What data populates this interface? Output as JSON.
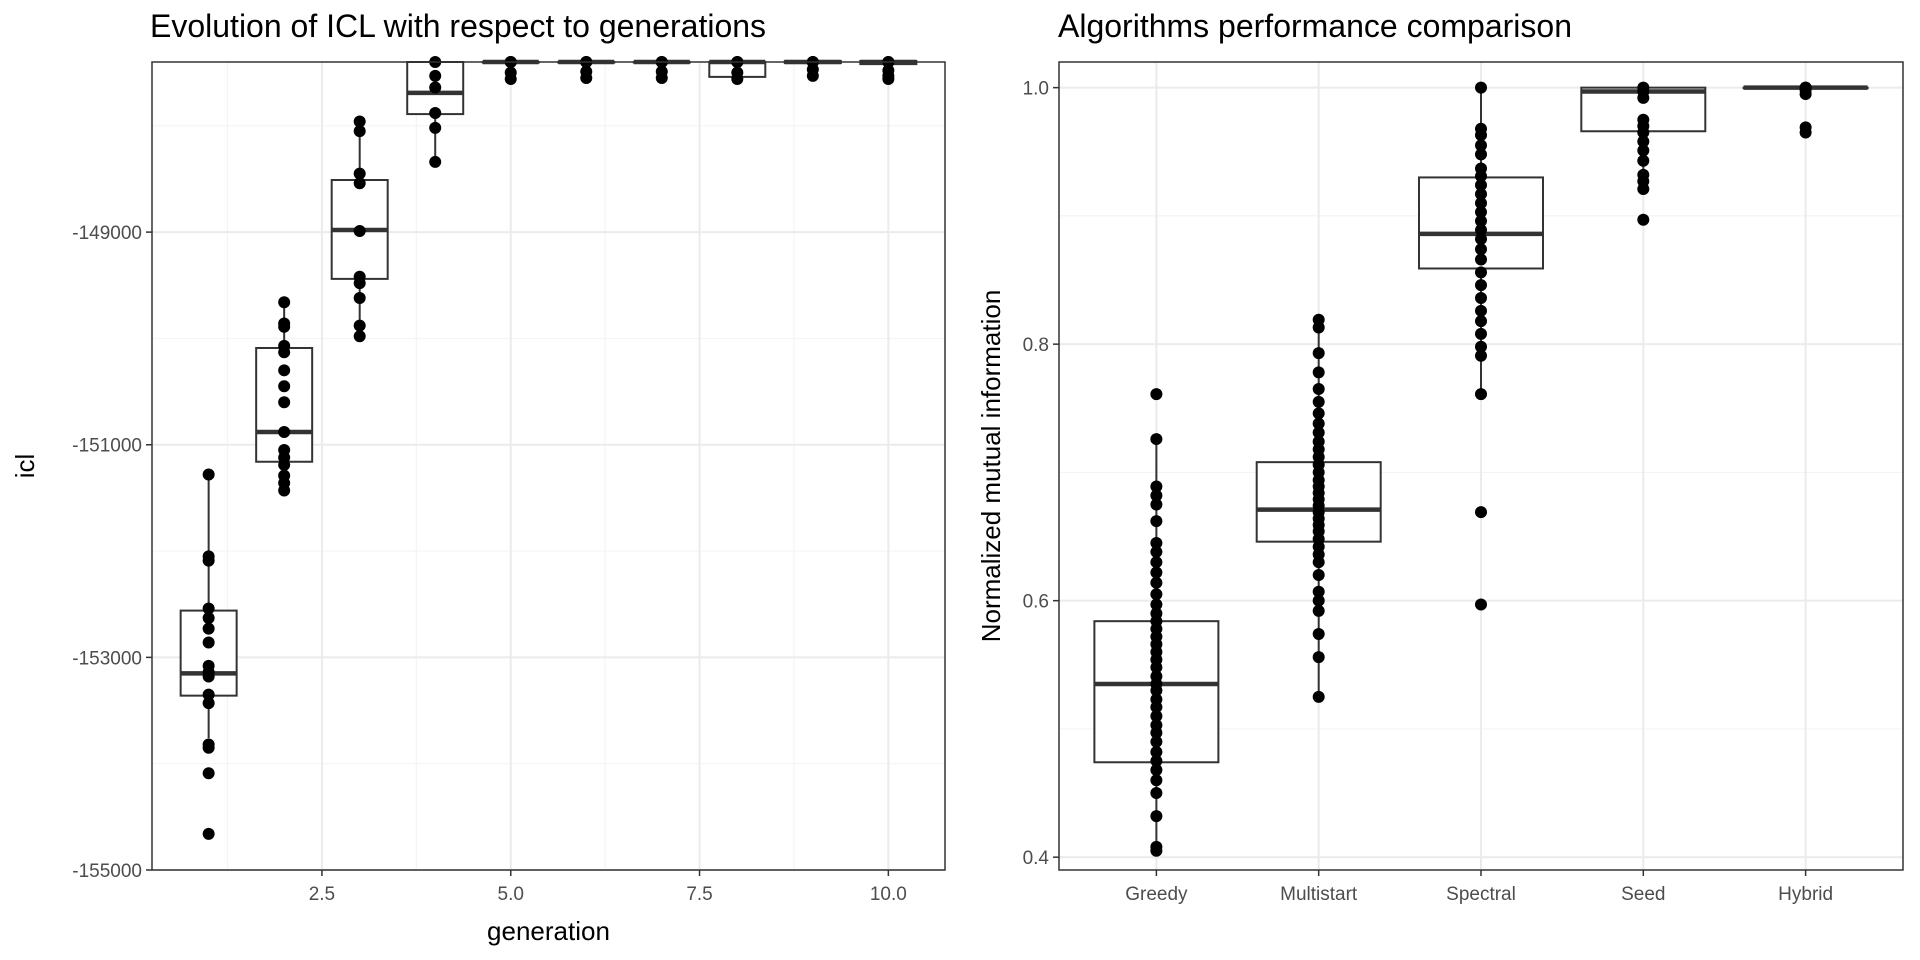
{
  "chart_data": [
    {
      "type": "box",
      "title": "Evolution of ICL with respect to generations",
      "xlabel": "generation",
      "ylabel": "icl",
      "xlim": [
        0.25,
        10.75
      ],
      "ylim": [
        -155000,
        -147400
      ],
      "x_ticks": [
        2.5,
        5.0,
        7.5,
        10.0
      ],
      "x_tick_labels": [
        "2.5",
        "5.0",
        "7.5",
        "10.0"
      ],
      "y_ticks": [
        -155000,
        -153000,
        -151000,
        -149000
      ],
      "y_tick_labels": [
        "-155000",
        "-153000",
        "-151000",
        "-149000"
      ],
      "grid": true,
      "boxes": [
        {
          "x": 1,
          "q1": -153360,
          "median": -153150,
          "q3": -152560,
          "whisker_low": -153760,
          "whisker_high": -151280,
          "points": [
            -154660,
            -154090,
            -153850,
            -153820,
            -153430,
            -153350,
            -153180,
            -153140,
            -153080,
            -152860,
            -152730,
            -152630,
            -152540,
            -152090,
            -152050,
            -151280
          ]
        },
        {
          "x": 2,
          "q1": -151160,
          "median": -150880,
          "q3": -150090,
          "whisker_low": -151430,
          "whisker_high": -149660,
          "points": [
            -151430,
            -151360,
            -151290,
            -151190,
            -151120,
            -151050,
            -150880,
            -150600,
            -150450,
            -150300,
            -150130,
            -150070,
            -149890,
            -149860,
            -149660
          ]
        },
        {
          "x": 3,
          "q1": -149440,
          "median": -148980,
          "q3": -148510,
          "whisker_low": -149980,
          "whisker_high": -147960,
          "points": [
            -149980,
            -149880,
            -149620,
            -149480,
            -149420,
            -148990,
            -148540,
            -148450,
            -148050,
            -147960
          ]
        },
        {
          "x": 4,
          "q1": -147890,
          "median": -147690,
          "q3": -147400,
          "whisker_low": -148340,
          "whisker_high": -147400,
          "points": [
            -148340,
            -148020,
            -147880,
            -147640,
            -147530,
            -147400
          ]
        },
        {
          "x": 5,
          "q1": -147400,
          "median": -147400,
          "q3": -147400,
          "whisker_low": -147400,
          "whisker_high": -147400,
          "points": [
            -147400,
            -147400,
            -147500,
            -147560
          ]
        },
        {
          "x": 6,
          "q1": -147400,
          "median": -147400,
          "q3": -147400,
          "whisker_low": -147400,
          "whisker_high": -147400,
          "points": [
            -147400,
            -147400,
            -147490,
            -147550
          ]
        },
        {
          "x": 7,
          "q1": -147400,
          "median": -147400,
          "q3": -147400,
          "whisker_low": -147400,
          "whisker_high": -147400,
          "points": [
            -147400,
            -147400,
            -147490,
            -147550
          ]
        },
        {
          "x": 8,
          "q1": -147540,
          "median": -147400,
          "q3": -147400,
          "whisker_low": -147540,
          "whisker_high": -147400,
          "points": [
            -147400,
            -147400,
            -147500,
            -147560
          ]
        },
        {
          "x": 9,
          "q1": -147410,
          "median": -147400,
          "q3": -147390,
          "whisker_low": -147410,
          "whisker_high": -147390,
          "points": [
            -147400,
            -147400,
            -147470,
            -147530
          ]
        },
        {
          "x": 10,
          "q1": -147420,
          "median": -147400,
          "q3": -147390,
          "whisker_low": -147420,
          "whisker_high": -147390,
          "points": [
            -147400,
            -147400,
            -147480,
            -147530,
            -147560
          ]
        }
      ]
    },
    {
      "type": "box",
      "title": "Algorithms performance comparison",
      "xlabel": "",
      "ylabel": "Normalized mutual information",
      "categories": [
        "Greedy",
        "Multistart",
        "Spectral",
        "Seed",
        "Hybrid"
      ],
      "ylim": [
        0.39,
        1.02
      ],
      "y_ticks": [
        0.4,
        0.6,
        0.8,
        1.0
      ],
      "y_tick_labels": [
        "0.4",
        "0.6",
        "0.8",
        "1.0"
      ],
      "grid": true,
      "boxes": [
        {
          "category": "Greedy",
          "q1": 0.474,
          "median": 0.535,
          "q3": 0.584,
          "whisker_low": 0.405,
          "whisker_high": 0.726,
          "points": [
            0.405,
            0.408,
            0.432,
            0.45,
            0.46,
            0.468,
            0.475,
            0.482,
            0.49,
            0.497,
            0.503,
            0.51,
            0.517,
            0.523,
            0.53,
            0.535,
            0.541,
            0.548,
            0.554,
            0.56,
            0.566,
            0.572,
            0.578,
            0.584,
            0.59,
            0.597,
            0.605,
            0.614,
            0.622,
            0.63,
            0.638,
            0.645,
            0.662,
            0.675,
            0.682,
            0.689,
            0.726,
            0.761
          ]
        },
        {
          "category": "Multistart",
          "q1": 0.646,
          "median": 0.671,
          "q3": 0.708,
          "whisker_low": 0.525,
          "whisker_high": 0.819,
          "points": [
            0.525,
            0.556,
            0.574,
            0.592,
            0.6,
            0.607,
            0.62,
            0.63,
            0.636,
            0.642,
            0.648,
            0.654,
            0.659,
            0.664,
            0.669,
            0.674,
            0.679,
            0.684,
            0.689,
            0.694,
            0.7,
            0.706,
            0.712,
            0.718,
            0.724,
            0.731,
            0.738,
            0.746,
            0.755,
            0.765,
            0.778,
            0.793,
            0.813,
            0.819
          ]
        },
        {
          "category": "Spectral",
          "q1": 0.859,
          "median": 0.886,
          "q3": 0.93,
          "whisker_low": 0.761,
          "whisker_high": 1.0,
          "points": [
            0.597,
            0.669,
            0.761,
            0.791,
            0.798,
            0.808,
            0.818,
            0.826,
            0.836,
            0.846,
            0.856,
            0.866,
            0.874,
            0.882,
            0.889,
            0.896,
            0.903,
            0.91,
            0.917,
            0.924,
            0.931,
            0.937,
            0.948,
            0.955,
            0.963,
            0.968,
            1.0
          ]
        },
        {
          "category": "Seed",
          "q1": 0.966,
          "median": 0.997,
          "q3": 1.0,
          "whisker_low": 0.921,
          "whisker_high": 1.0,
          "points": [
            0.897,
            0.921,
            0.927,
            0.932,
            0.943,
            0.951,
            0.958,
            0.965,
            0.97,
            0.975,
            0.992,
            0.997,
            1.0
          ]
        },
        {
          "category": "Hybrid",
          "q1": 1.0,
          "median": 1.0,
          "q3": 1.0,
          "whisker_low": 1.0,
          "whisker_high": 1.0,
          "points": [
            0.965,
            0.969,
            0.995,
            0.998,
            1.0,
            1.0
          ]
        }
      ]
    }
  ]
}
